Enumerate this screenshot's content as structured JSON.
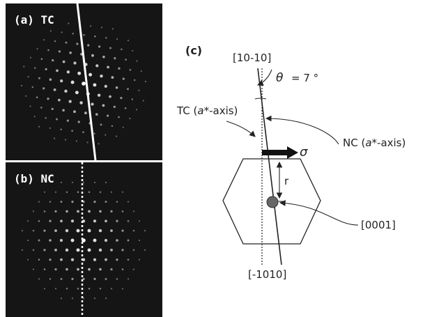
{
  "panel_a": {
    "label": "(a) TC"
  },
  "panel_b": {
    "label": "(b) NC"
  },
  "diagram": {
    "panel_label": "(c)",
    "top_direction": "[10-10]",
    "theta_symbol": "θ",
    "theta_value": "= 7 °",
    "tc_label_prefix": "TC (",
    "tc_label_axis": "a*",
    "tc_label_suffix": "-axis)",
    "nc_label_prefix": "NC (",
    "nc_label_axis": "a*",
    "nc_label_suffix": "-axis)",
    "sigma_symbol": "σ",
    "r_label": "r",
    "center_direction": "[0001]",
    "bottom_direction": "[-1010]"
  }
}
